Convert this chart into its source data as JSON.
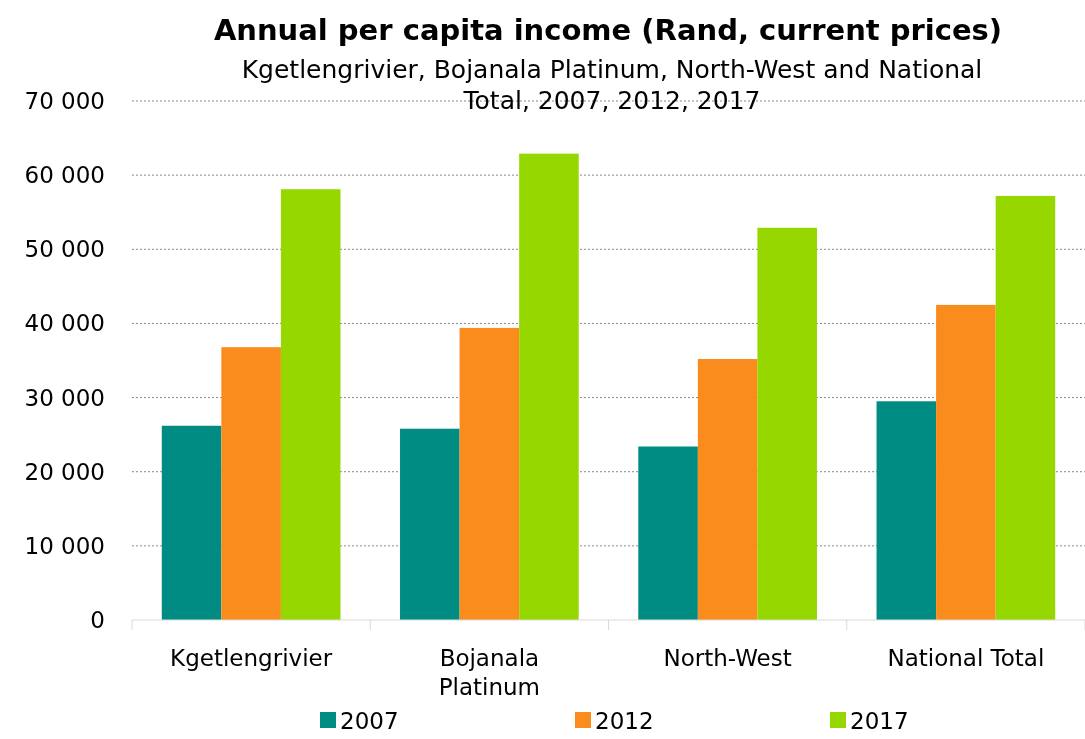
{
  "chart_data": {
    "type": "bar",
    "title": "Annual per capita income (Rand, current prices)",
    "subtitle": "Kgetlengrivier, Bojanala Platinum, North-West and National Total, 2007, 2012, 2017",
    "categories": [
      "Kgetlengrivier",
      "Bojanala Platinum",
      "North-West",
      "National Total"
    ],
    "series": [
      {
        "name": "2007",
        "color": "#008c82",
        "values": [
          26200,
          25800,
          23400,
          29500
        ]
      },
      {
        "name": "2012",
        "color": "#fa8c1e",
        "values": [
          36800,
          39400,
          35200,
          42500
        ]
      },
      {
        "name": "2017",
        "color": "#96d700",
        "values": [
          58100,
          62900,
          52900,
          57200
        ]
      }
    ],
    "ylim": [
      0,
      70000
    ],
    "yticks": [
      {
        "value": 0,
        "label": "0"
      },
      {
        "value": 10000,
        "label": "10 000"
      },
      {
        "value": 20000,
        "label": "20 000"
      },
      {
        "value": 30000,
        "label": "30 000"
      },
      {
        "value": 40000,
        "label": "40 000"
      },
      {
        "value": 50000,
        "label": "50 000"
      },
      {
        "value": 60000,
        "label": "60 000"
      },
      {
        "value": 70000,
        "label": "70 000"
      }
    ],
    "grid": "y",
    "legend": "bottom"
  }
}
